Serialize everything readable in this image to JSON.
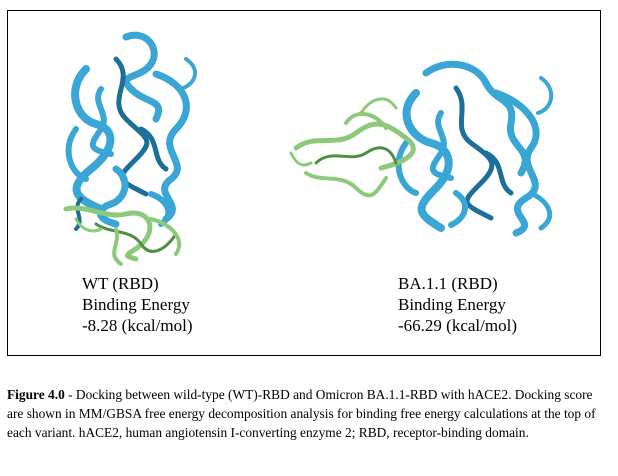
{
  "figure": {
    "panels": [
      {
        "variant": "WT (RBD)",
        "energy_label": "Binding Energy",
        "energy_value": "-8.28",
        "energy_unit": "(kcal/mol)"
      },
      {
        "variant": "BA.1.1 (RBD)",
        "energy_label": "Binding Energy",
        "energy_value": "-66.29",
        "energy_unit": "(kcal/mol)"
      }
    ],
    "colors": {
      "ace2": "#3aa6d6",
      "ace2_dark": "#1b6f99",
      "rbd": "#8cc97a",
      "rbd_dark": "#4f8f44"
    }
  },
  "caption": {
    "label": "Figure 4.0",
    "text": " - Docking between wild-type (WT)-RBD and Omicron BA.1.1-RBD with hACE2. Docking score are shown in MM/GBSA free energy decomposition analysis for binding free energy calculations at the top of each variant. hACE2, human angiotensin I-converting enzyme 2; RBD, receptor-binding domain."
  }
}
